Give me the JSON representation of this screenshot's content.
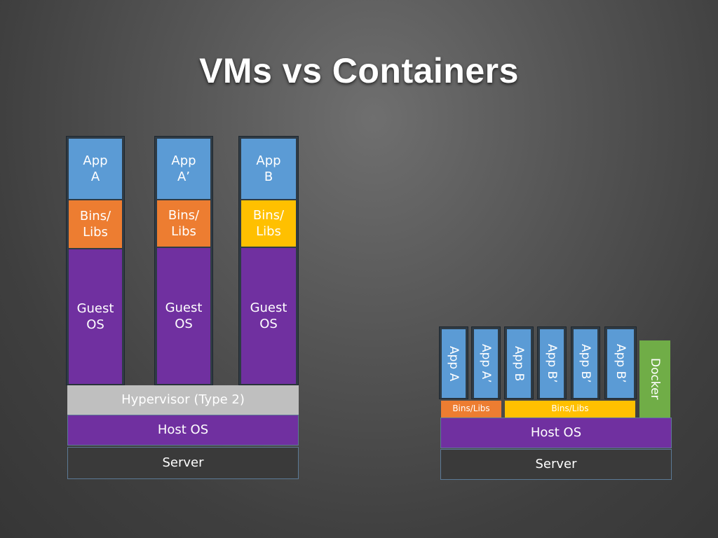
{
  "title": "VMs vs Containers",
  "vm_stack": {
    "vms": [
      {
        "app": "App\nA",
        "libs": "Bins/\nLibs",
        "libs_color": "#ed7d31",
        "guest_os": "Guest\nOS"
      },
      {
        "app": "App\nA’",
        "libs": "Bins/\nLibs",
        "libs_color": "#ed7d31",
        "guest_os": "Guest\nOS"
      },
      {
        "app": "App\nB",
        "libs": "Bins/\nLibs",
        "libs_color": "#ffc000",
        "guest_os": "Guest\nOS"
      }
    ],
    "hypervisor": "Hypervisor (Type 2)",
    "host_os": "Host OS",
    "server": "Server"
  },
  "container_stack": {
    "apps": [
      "App A",
      "App A’",
      "App B",
      "App B’",
      "App B’",
      "App B’"
    ],
    "libs": [
      "Bins/Libs",
      "Bins/Libs"
    ],
    "engine": "Docker",
    "host_os": "Host OS",
    "server": "Server"
  },
  "colors": {
    "app": "#5b9bd5",
    "libs_a": "#ed7d31",
    "libs_b": "#ffc000",
    "os": "#7030a0",
    "hypervisor": "#bfbfbf",
    "server": "#3a3a3a",
    "docker": "#70ad47"
  }
}
